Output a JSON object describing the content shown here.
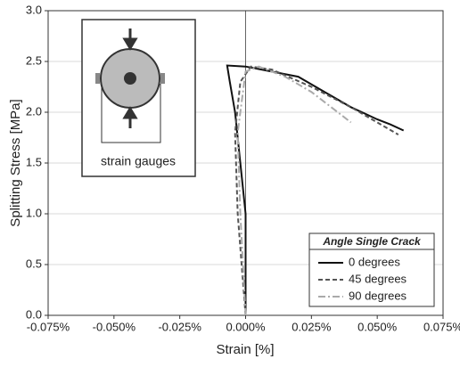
{
  "chart_data": {
    "type": "line",
    "x_label": "Strain [%]",
    "y_label": "Splitting Stress [MPa]",
    "annotation": "strain gauges",
    "legend_title": "Angle Single Crack",
    "legend": "lower right",
    "grid": "y",
    "zero_line": true,
    "xlim": [
      -0.075,
      0.075
    ],
    "xticks": [
      {
        "value": -0.075,
        "label": "-0.075%"
      },
      {
        "value": -0.05,
        "label": "-0.050%"
      },
      {
        "value": -0.025,
        "label": "-0.025%"
      },
      {
        "value": 0,
        "label": "0.000%"
      },
      {
        "value": 0.025,
        "label": "0.025%"
      },
      {
        "value": 0.05,
        "label": "0.050%"
      },
      {
        "value": 0.075,
        "label": "0.075%"
      }
    ],
    "ylim": [
      0,
      3
    ],
    "yticks": [
      {
        "value": 0,
        "label": "0.0"
      },
      0.5,
      {
        "value": 1,
        "label": "1.0"
      },
      1.5,
      {
        "value": 2,
        "label": "2.0"
      },
      2.5,
      {
        "value": 3,
        "label": "3.0"
      }
    ],
    "series": [
      {
        "name": "0 degrees",
        "color": "#111111",
        "linestyle": "solid",
        "x": [
          0.0,
          0.0,
          -0.002,
          -0.004,
          -0.006,
          -0.007,
          0.0,
          0.01,
          0.02,
          0.03,
          0.04,
          0.05,
          0.055,
          0.06
        ],
        "values": [
          0,
          1.0,
          1.5,
          2.0,
          2.3,
          2.46,
          2.45,
          2.4,
          2.35,
          2.2,
          2.05,
          1.93,
          1.88,
          1.82
        ]
      },
      {
        "name": "45 degrees",
        "color": "#555555",
        "linestyle": "dashed",
        "x": [
          0.0,
          -0.003,
          -0.004,
          -0.002,
          0.002,
          0.01,
          0.025,
          0.04,
          0.05,
          0.058
        ],
        "values": [
          0,
          1.0,
          1.8,
          2.3,
          2.45,
          2.42,
          2.25,
          2.05,
          1.9,
          1.78
        ]
      },
      {
        "name": "90 degrees",
        "color": "#aaaaaa",
        "linestyle": "dashdot",
        "x": [
          0.0,
          -0.002,
          -0.003,
          0.0,
          0.005,
          0.015,
          0.025,
          0.035,
          0.04
        ],
        "values": [
          0,
          1.0,
          1.8,
          2.4,
          2.45,
          2.35,
          2.2,
          2.0,
          1.9
        ]
      }
    ]
  }
}
